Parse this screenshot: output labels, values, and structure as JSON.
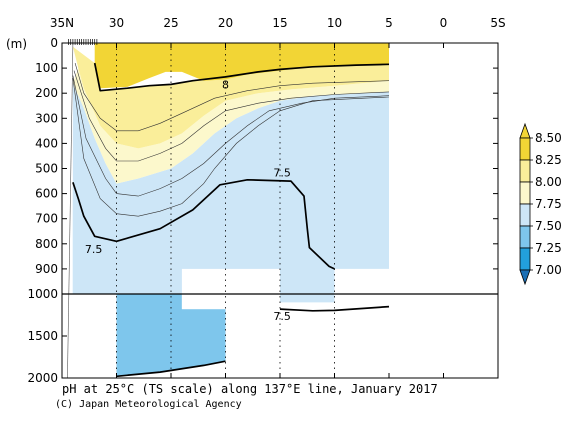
{
  "chart_data": {
    "type": "heatmap",
    "title": "pH at 25°C (TS scale) along 137°E line, January 2017",
    "credit": "(C) Japan Meteorological Agency",
    "ylabel": "(m)",
    "x_ticks": [
      "35N",
      "30",
      "25",
      "20",
      "15",
      "10",
      "5",
      "0",
      "5S"
    ],
    "y_ticks_upper": [
      "0",
      "100",
      "200",
      "300",
      "400",
      "500",
      "600",
      "700",
      "800",
      "900",
      "1000"
    ],
    "y_ticks_lower": [
      "1500",
      "2000"
    ],
    "xlim": [
      35,
      -5
    ],
    "ylim_upper": [
      0,
      1000
    ],
    "ylim_lower": [
      1000,
      2000
    ],
    "colorbar": {
      "levels": [
        "8.50",
        "8.25",
        "8.00",
        "7.75",
        "7.50",
        "7.25",
        "7.00"
      ],
      "colors": [
        "#f2d535",
        "#faee9a",
        "#fcf8cc",
        "#cde6f7",
        "#7ec6ec",
        "#22a0dc",
        "#1a6fb5"
      ]
    },
    "contour_labels": [
      {
        "text": "8",
        "lat": 20.0,
        "depth": 165
      },
      {
        "text": "7.5",
        "lat": 14.8,
        "depth": 515
      },
      {
        "text": "7.5",
        "lat": 32.1,
        "depth": 820
      },
      {
        "text": "7.5",
        "lat": 14.8,
        "depth": 1260
      }
    ],
    "regions": [
      {
        "level": "7.25-7.50",
        "upper": [
          [
            34,
            555
          ],
          [
            33.5,
            620
          ],
          [
            33,
            690
          ],
          [
            32,
            770
          ],
          [
            30,
            790
          ],
          [
            26,
            740
          ],
          [
            23,
            665
          ],
          [
            20.5,
            565
          ],
          [
            18,
            545
          ],
          [
            14,
            550
          ],
          [
            12.8,
            610
          ],
          [
            12.5,
            740
          ],
          [
            12.3,
            815
          ],
          [
            10.5,
            890
          ],
          [
            10,
            900
          ],
          [
            10,
            1000
          ],
          [
            34,
            1000
          ]
        ],
        "lower": [
          [
            30,
            1000
          ],
          [
            30,
            1980
          ],
          [
            26,
            1930
          ],
          [
            22,
            1850
          ],
          [
            20,
            1800
          ],
          [
            20,
            1180
          ],
          [
            24,
            1180
          ],
          [
            24,
            1000
          ]
        ]
      },
      {
        "level": "7.50-7.75",
        "upper": [
          [
            34,
            160
          ],
          [
            33,
            260
          ],
          [
            32,
            380
          ],
          [
            31,
            480
          ],
          [
            30,
            560
          ],
          [
            28,
            540
          ],
          [
            25,
            500
          ],
          [
            23,
            440
          ],
          [
            21,
            360
          ],
          [
            19,
            300
          ],
          [
            17,
            260
          ],
          [
            15,
            230
          ],
          [
            12,
            210
          ],
          [
            5,
            195
          ],
          [
            5,
            900
          ],
          [
            10,
            900
          ],
          [
            10,
            1000
          ],
          [
            34,
            1000
          ]
        ],
        "lower": [
          [
            15,
            1000
          ],
          [
            15,
            1100
          ],
          [
            10,
            1100
          ],
          [
            10,
            1000
          ]
        ]
      },
      {
        "level": "7.75-8.00",
        "upper": [
          [
            33.5,
            100
          ],
          [
            33,
            180
          ],
          [
            31.5,
            330
          ],
          [
            30,
            400
          ],
          [
            28,
            420
          ],
          [
            26,
            400
          ],
          [
            24,
            360
          ],
          [
            22,
            290
          ],
          [
            20,
            230
          ],
          [
            17,
            200
          ],
          [
            14,
            185
          ],
          [
            10,
            170
          ],
          [
            5,
            150
          ],
          [
            5,
            195
          ],
          [
            12,
            210
          ],
          [
            15,
            230
          ],
          [
            17,
            260
          ],
          [
            19,
            300
          ],
          [
            21,
            360
          ],
          [
            23,
            440
          ],
          [
            25,
            500
          ],
          [
            28,
            540
          ],
          [
            30,
            560
          ],
          [
            31,
            480
          ],
          [
            32,
            380
          ],
          [
            33,
            260
          ],
          [
            34,
            160
          ]
        ]
      },
      {
        "level": "8.00-8.25",
        "upper": [
          [
            34,
            15
          ],
          [
            32,
            80
          ],
          [
            31.5,
            190
          ],
          [
            29,
            180
          ],
          [
            27,
            170
          ],
          [
            25,
            165
          ],
          [
            23,
            150
          ],
          [
            20,
            135
          ],
          [
            17,
            115
          ],
          [
            15,
            105
          ],
          [
            12,
            95
          ],
          [
            5,
            85
          ],
          [
            5,
            150
          ],
          [
            10,
            170
          ],
          [
            14,
            185
          ],
          [
            17,
            200
          ],
          [
            20,
            230
          ],
          [
            22,
            290
          ],
          [
            24,
            360
          ],
          [
            26,
            400
          ],
          [
            28,
            420
          ],
          [
            30,
            400
          ],
          [
            31.5,
            330
          ],
          [
            33,
            180
          ],
          [
            33.5,
            100
          ]
        ]
      },
      {
        "level": "8.25-8.50",
        "upper": [
          [
            32,
            0
          ],
          [
            32,
            80
          ],
          [
            31.5,
            180
          ],
          [
            29,
            175
          ],
          [
            27,
            140
          ],
          [
            25.5,
            115
          ],
          [
            24,
            115
          ],
          [
            22,
            150
          ],
          [
            20,
            145
          ],
          [
            18,
            125
          ],
          [
            15,
            110
          ],
          [
            12,
            95
          ],
          [
            5,
            85
          ],
          [
            5,
            0
          ]
        ]
      }
    ],
    "white_blocks": [
      {
        "lat": [
          24,
          15
        ],
        "depth": [
          900,
          1000
        ]
      },
      {
        "lat": [
          24,
          15
        ],
        "depth": [
          1000,
          1180
        ]
      },
      {
        "lat": [
          10,
          5
        ],
        "depth": [
          1000,
          1100
        ]
      },
      {
        "lat": [
          34,
          30
        ],
        "depth": [
          1000,
          2000
        ]
      },
      {
        "lat": [
          5,
          -5
        ],
        "depth": [
          0,
          2000
        ]
      }
    ],
    "contours": [
      {
        "level": "8",
        "points": [
          [
            32,
            80
          ],
          [
            31.5,
            190
          ],
          [
            29,
            180
          ],
          [
            27,
            170
          ],
          [
            25,
            165
          ],
          [
            23,
            150
          ],
          [
            20,
            135
          ],
          [
            17,
            115
          ],
          [
            15,
            105
          ],
          [
            12,
            95
          ],
          [
            8,
            88
          ],
          [
            5,
            85
          ]
        ]
      },
      {
        "level": "7.5",
        "points": [
          [
            34,
            555
          ],
          [
            33.5,
            620
          ],
          [
            33,
            690
          ],
          [
            32,
            770
          ],
          [
            30,
            790
          ],
          [
            26,
            740
          ],
          [
            23,
            665
          ],
          [
            20.5,
            565
          ],
          [
            18,
            545
          ],
          [
            14,
            550
          ],
          [
            12.8,
            610
          ],
          [
            12.5,
            740
          ],
          [
            12.3,
            815
          ],
          [
            10.5,
            890
          ],
          [
            10,
            900
          ]
        ]
      },
      {
        "level": "7.5",
        "points": [
          [
            30,
            1980
          ],
          [
            26,
            1930
          ],
          [
            22,
            1850
          ],
          [
            20,
            1800
          ]
        ]
      },
      {
        "level": "7.5",
        "points": [
          [
            15,
            1180
          ],
          [
            12,
            1200
          ],
          [
            10,
            1195
          ],
          [
            5,
            1150
          ]
        ]
      }
    ],
    "thin_contours": [
      [
        [
          33.8,
          80
        ],
        [
          33,
          200
        ],
        [
          31.5,
          300
        ],
        [
          30,
          350
        ],
        [
          28,
          350
        ],
        [
          26,
          320
        ],
        [
          24,
          280
        ],
        [
          21,
          220
        ],
        [
          18,
          190
        ],
        [
          15,
          170
        ],
        [
          12,
          160
        ],
        [
          5,
          150
        ]
      ],
      [
        [
          33.9,
          110
        ],
        [
          32.5,
          300
        ],
        [
          31,
          420
        ],
        [
          30,
          470
        ],
        [
          28,
          470
        ],
        [
          26,
          440
        ],
        [
          24,
          400
        ],
        [
          22,
          330
        ],
        [
          20,
          270
        ],
        [
          17,
          240
        ],
        [
          14,
          220
        ],
        [
          10,
          205
        ],
        [
          5,
          195
        ]
      ],
      [
        [
          34,
          130
        ],
        [
          32.8,
          380
        ],
        [
          31,
          540
        ],
        [
          30,
          600
        ],
        [
          28,
          610
        ],
        [
          26,
          580
        ],
        [
          24,
          540
        ],
        [
          22,
          480
        ],
        [
          20,
          400
        ],
        [
          18,
          330
        ],
        [
          16,
          270
        ],
        [
          13,
          240
        ],
        [
          10,
          220
        ],
        [
          5,
          210
        ]
      ],
      [
        [
          34,
          140
        ],
        [
          33,
          460
        ],
        [
          31.5,
          620
        ],
        [
          30,
          680
        ],
        [
          28,
          690
        ],
        [
          26,
          670
        ],
        [
          24,
          640
        ],
        [
          22,
          560
        ],
        [
          21,
          500
        ],
        [
          19,
          400
        ],
        [
          17,
          330
        ],
        [
          15,
          270
        ],
        [
          12,
          230
        ],
        [
          5,
          215
        ]
      ]
    ]
  }
}
